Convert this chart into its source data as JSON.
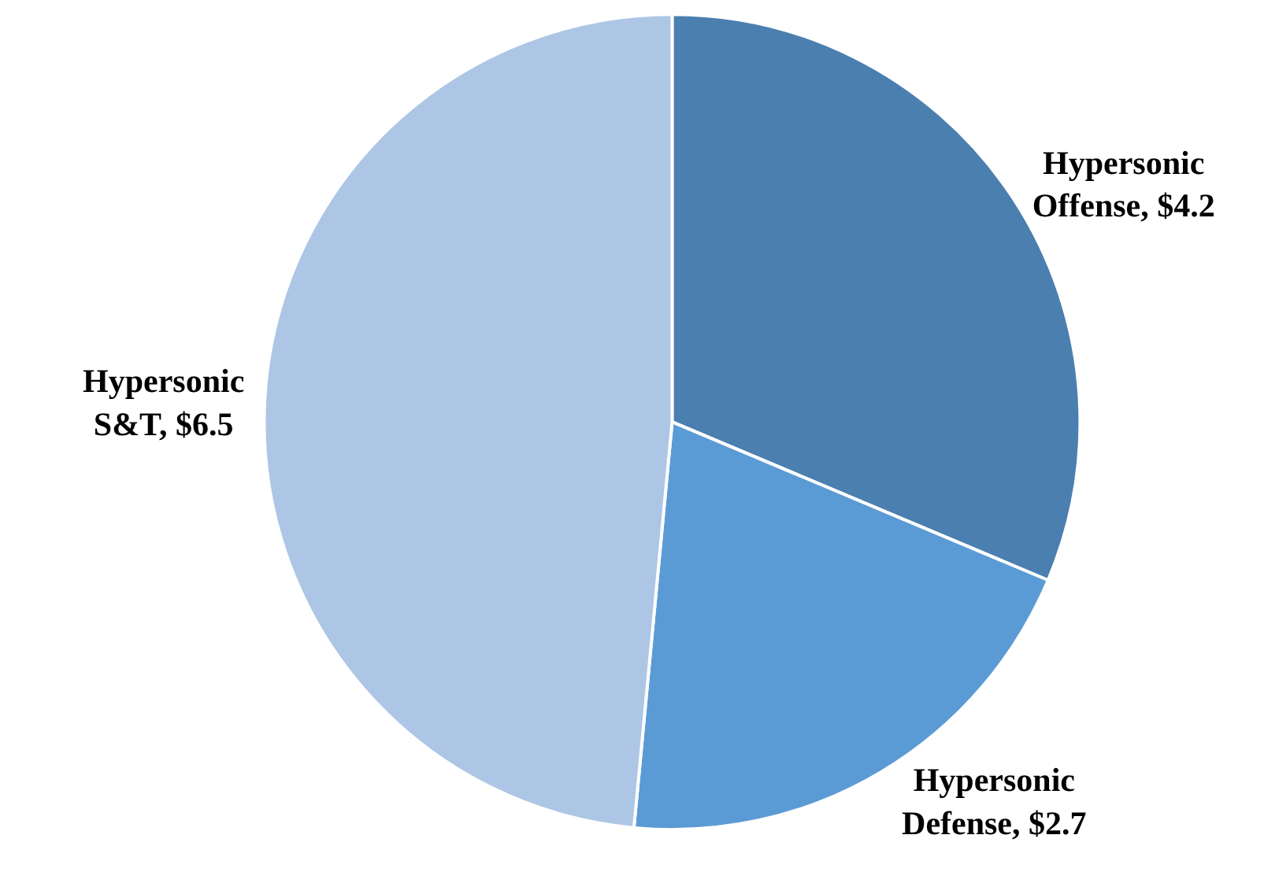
{
  "chart_data": {
    "type": "pie",
    "categories": [
      "Hypersonic Offense",
      "Hypersonic Defense",
      "Hypersonic S&T"
    ],
    "values": [
      4.2,
      2.7,
      6.5
    ],
    "value_labels": [
      "$4.2",
      "$2.7",
      "$6.5"
    ],
    "colors": [
      "#4a7fb0",
      "#5b9bd5",
      "#adc6e5"
    ],
    "legend": false
  }
}
